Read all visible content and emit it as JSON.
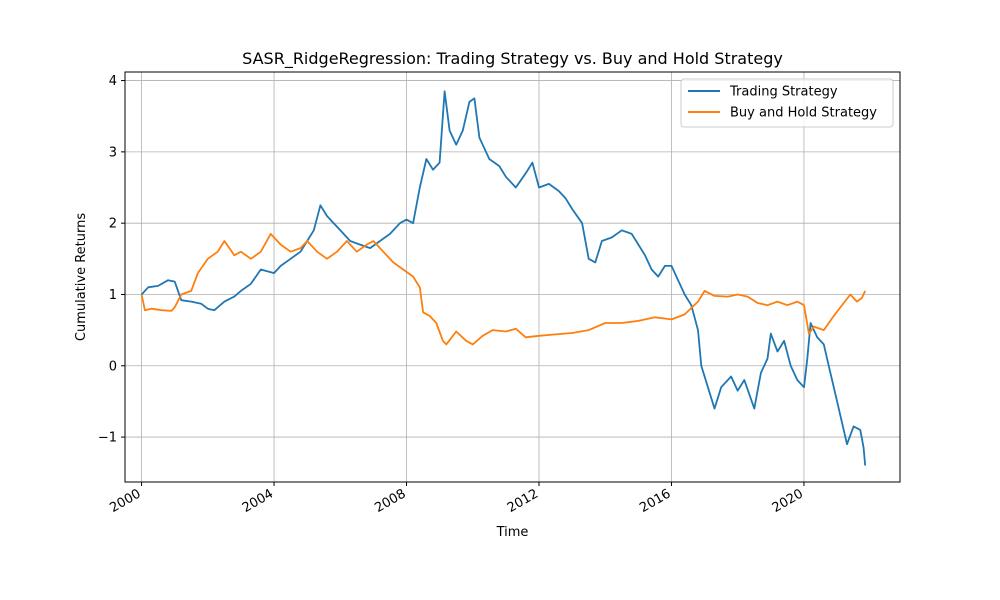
{
  "chart_data": {
    "type": "line",
    "title": "SASR_RidgeRegression: Trading Strategy vs. Buy and Hold Strategy",
    "xlabel": "Time",
    "ylabel": "Cumulative Returns",
    "xlim": [
      1999.5,
      2022.9
    ],
    "ylim": [
      -1.63,
      4.12
    ],
    "x_ticks": [
      2000,
      2004,
      2008,
      2012,
      2016,
      2020
    ],
    "x_tick_labels": [
      "2000",
      "2004",
      "2008",
      "2012",
      "2016",
      "2020"
    ],
    "y_ticks": [
      -1,
      0,
      1,
      2,
      3,
      4
    ],
    "y_tick_labels": [
      "−1",
      "0",
      "1",
      "2",
      "3",
      "4"
    ],
    "grid": true,
    "legend_position": "top-right",
    "series": [
      {
        "name": "Trading Strategy",
        "color": "#1f77b4",
        "points": [
          [
            2000.0,
            1.0
          ],
          [
            2000.2,
            1.1
          ],
          [
            2000.5,
            1.12
          ],
          [
            2000.8,
            1.2
          ],
          [
            2001.0,
            1.18
          ],
          [
            2001.2,
            0.92
          ],
          [
            2001.5,
            0.9
          ],
          [
            2001.8,
            0.87
          ],
          [
            2002.0,
            0.8
          ],
          [
            2002.2,
            0.78
          ],
          [
            2002.5,
            0.9
          ],
          [
            2002.8,
            0.97
          ],
          [
            2003.0,
            1.05
          ],
          [
            2003.3,
            1.15
          ],
          [
            2003.6,
            1.35
          ],
          [
            2004.0,
            1.3
          ],
          [
            2004.2,
            1.4
          ],
          [
            2004.5,
            1.5
          ],
          [
            2004.8,
            1.6
          ],
          [
            2005.0,
            1.75
          ],
          [
            2005.2,
            1.9
          ],
          [
            2005.4,
            2.25
          ],
          [
            2005.6,
            2.1
          ],
          [
            2005.8,
            2.0
          ],
          [
            2006.0,
            1.9
          ],
          [
            2006.3,
            1.75
          ],
          [
            2006.6,
            1.7
          ],
          [
            2006.9,
            1.65
          ],
          [
            2007.2,
            1.75
          ],
          [
            2007.5,
            1.85
          ],
          [
            2007.8,
            2.0
          ],
          [
            2008.0,
            2.05
          ],
          [
            2008.2,
            2.0
          ],
          [
            2008.4,
            2.5
          ],
          [
            2008.6,
            2.9
          ],
          [
            2008.8,
            2.75
          ],
          [
            2009.0,
            2.85
          ],
          [
            2009.15,
            3.85
          ],
          [
            2009.3,
            3.3
          ],
          [
            2009.5,
            3.1
          ],
          [
            2009.7,
            3.3
          ],
          [
            2009.9,
            3.7
          ],
          [
            2010.05,
            3.75
          ],
          [
            2010.2,
            3.2
          ],
          [
            2010.5,
            2.9
          ],
          [
            2010.8,
            2.8
          ],
          [
            2011.0,
            2.65
          ],
          [
            2011.3,
            2.5
          ],
          [
            2011.6,
            2.7
          ],
          [
            2011.8,
            2.85
          ],
          [
            2012.0,
            2.5
          ],
          [
            2012.3,
            2.55
          ],
          [
            2012.6,
            2.45
          ],
          [
            2012.8,
            2.35
          ],
          [
            2013.0,
            2.2
          ],
          [
            2013.3,
            2.0
          ],
          [
            2013.5,
            1.5
          ],
          [
            2013.7,
            1.45
          ],
          [
            2013.9,
            1.75
          ],
          [
            2014.2,
            1.8
          ],
          [
            2014.5,
            1.9
          ],
          [
            2014.8,
            1.85
          ],
          [
            2015.0,
            1.7
          ],
          [
            2015.2,
            1.55
          ],
          [
            2015.4,
            1.35
          ],
          [
            2015.6,
            1.25
          ],
          [
            2015.8,
            1.4
          ],
          [
            2016.0,
            1.4
          ],
          [
            2016.2,
            1.2
          ],
          [
            2016.4,
            1.0
          ],
          [
            2016.6,
            0.85
          ],
          [
            2016.8,
            0.5
          ],
          [
            2016.9,
            0.0
          ],
          [
            2017.1,
            -0.3
          ],
          [
            2017.2,
            -0.45
          ],
          [
            2017.3,
            -0.6
          ],
          [
            2017.5,
            -0.3
          ],
          [
            2017.8,
            -0.15
          ],
          [
            2018.0,
            -0.35
          ],
          [
            2018.2,
            -0.2
          ],
          [
            2018.5,
            -0.6
          ],
          [
            2018.7,
            -0.1
          ],
          [
            2018.9,
            0.1
          ],
          [
            2019.0,
            0.45
          ],
          [
            2019.2,
            0.2
          ],
          [
            2019.4,
            0.35
          ],
          [
            2019.6,
            0.0
          ],
          [
            2019.8,
            -0.2
          ],
          [
            2020.0,
            -0.3
          ],
          [
            2020.1,
            0.1
          ],
          [
            2020.2,
            0.6
          ],
          [
            2020.4,
            0.4
          ],
          [
            2020.6,
            0.3
          ],
          [
            2020.8,
            -0.1
          ],
          [
            2021.0,
            -0.5
          ],
          [
            2021.2,
            -0.9
          ],
          [
            2021.3,
            -1.1
          ],
          [
            2021.5,
            -0.85
          ],
          [
            2021.7,
            -0.9
          ],
          [
            2021.8,
            -1.15
          ],
          [
            2021.85,
            -1.4
          ]
        ]
      },
      {
        "name": "Buy and Hold Strategy",
        "color": "#ff7f0e",
        "points": [
          [
            2000.0,
            1.0
          ],
          [
            2000.1,
            0.78
          ],
          [
            2000.3,
            0.8
          ],
          [
            2000.6,
            0.78
          ],
          [
            2000.9,
            0.77
          ],
          [
            2001.0,
            0.82
          ],
          [
            2001.2,
            1.0
          ],
          [
            2001.5,
            1.05
          ],
          [
            2001.7,
            1.3
          ],
          [
            2002.0,
            1.5
          ],
          [
            2002.3,
            1.6
          ],
          [
            2002.5,
            1.75
          ],
          [
            2002.8,
            1.55
          ],
          [
            2003.0,
            1.6
          ],
          [
            2003.3,
            1.5
          ],
          [
            2003.6,
            1.6
          ],
          [
            2003.9,
            1.85
          ],
          [
            2004.2,
            1.7
          ],
          [
            2004.5,
            1.6
          ],
          [
            2004.8,
            1.65
          ],
          [
            2005.0,
            1.75
          ],
          [
            2005.3,
            1.6
          ],
          [
            2005.6,
            1.5
          ],
          [
            2005.9,
            1.6
          ],
          [
            2006.2,
            1.75
          ],
          [
            2006.5,
            1.6
          ],
          [
            2006.8,
            1.7
          ],
          [
            2007.0,
            1.75
          ],
          [
            2007.3,
            1.6
          ],
          [
            2007.6,
            1.45
          ],
          [
            2007.9,
            1.35
          ],
          [
            2008.2,
            1.25
          ],
          [
            2008.4,
            1.1
          ],
          [
            2008.5,
            0.75
          ],
          [
            2008.7,
            0.7
          ],
          [
            2008.9,
            0.6
          ],
          [
            2009.1,
            0.35
          ],
          [
            2009.2,
            0.3
          ],
          [
            2009.5,
            0.48
          ],
          [
            2009.8,
            0.35
          ],
          [
            2010.0,
            0.3
          ],
          [
            2010.3,
            0.42
          ],
          [
            2010.6,
            0.5
          ],
          [
            2011.0,
            0.48
          ],
          [
            2011.3,
            0.52
          ],
          [
            2011.6,
            0.4
          ],
          [
            2012.0,
            0.42
          ],
          [
            2012.5,
            0.44
          ],
          [
            2013.0,
            0.46
          ],
          [
            2013.5,
            0.5
          ],
          [
            2014.0,
            0.6
          ],
          [
            2014.5,
            0.6
          ],
          [
            2015.0,
            0.63
          ],
          [
            2015.5,
            0.68
          ],
          [
            2016.0,
            0.65
          ],
          [
            2016.4,
            0.72
          ],
          [
            2016.8,
            0.9
          ],
          [
            2017.0,
            1.05
          ],
          [
            2017.3,
            0.98
          ],
          [
            2017.7,
            0.97
          ],
          [
            2018.0,
            1.0
          ],
          [
            2018.3,
            0.97
          ],
          [
            2018.6,
            0.88
          ],
          [
            2018.9,
            0.85
          ],
          [
            2019.2,
            0.9
          ],
          [
            2019.5,
            0.85
          ],
          [
            2019.8,
            0.9
          ],
          [
            2020.0,
            0.85
          ],
          [
            2020.15,
            0.45
          ],
          [
            2020.3,
            0.55
          ],
          [
            2020.6,
            0.5
          ],
          [
            2020.9,
            0.7
          ],
          [
            2021.2,
            0.88
          ],
          [
            2021.4,
            1.0
          ],
          [
            2021.6,
            0.9
          ],
          [
            2021.75,
            0.95
          ],
          [
            2021.85,
            1.05
          ]
        ]
      }
    ]
  }
}
